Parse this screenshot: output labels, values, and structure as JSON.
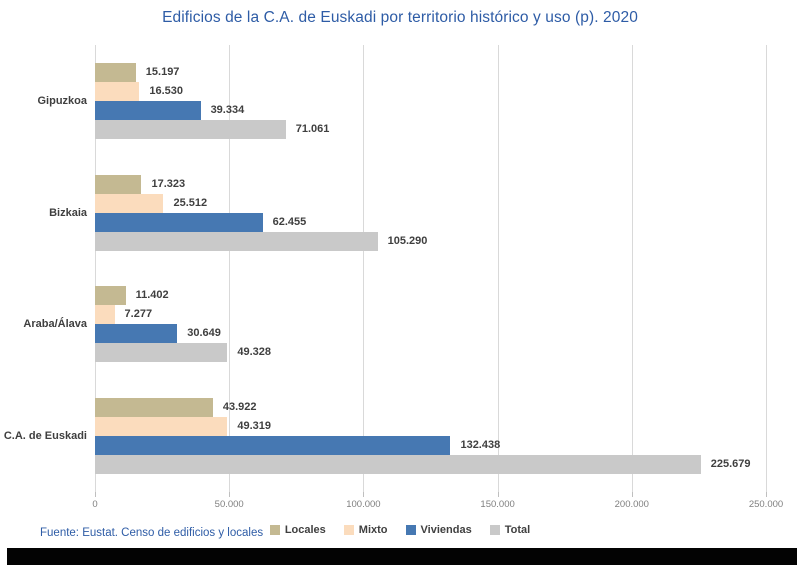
{
  "title": "Edificios de la C.A. de Euskadi por territorio histórico y uso (p). 2020",
  "footer": {
    "source": "Fuente: Eustat. Censo de edificios y locales"
  },
  "colors": {
    "title_text": "#2e5ca6",
    "source_text": "#2e5ca6",
    "locales": "#c4b992",
    "mixto": "#fbdcbd",
    "viviendas": "#4678b2",
    "total": "#c9c9c9",
    "gridline": "#d9d9d9",
    "value_label": "#3f3f3f",
    "tick_label": "#7f7f7f",
    "bottom_bar": "#030303"
  },
  "chart_data": {
    "type": "bar",
    "orientation": "horizontal",
    "title": "Edificios de la C.A. de Euskadi por territorio histórico y uso (p). 2020",
    "categories": [
      "Gipuzkoa",
      "Bizkaia",
      "Araba/Álava",
      "C.A. de Euskadi"
    ],
    "series": [
      {
        "name": "Locales",
        "color_key": "locales",
        "values": [
          15197,
          17323,
          11402,
          43922
        ]
      },
      {
        "name": "Mixto",
        "color_key": "mixto",
        "values": [
          16530,
          25512,
          7277,
          49319
        ]
      },
      {
        "name": "Viviendas",
        "color_key": "viviendas",
        "values": [
          39334,
          62455,
          30649,
          132438
        ]
      },
      {
        "name": "Total",
        "color_key": "total",
        "values": [
          71061,
          105290,
          49328,
          225679
        ]
      }
    ],
    "value_labels": [
      "15.197",
      "16.530",
      "39.334",
      "71.061",
      "17.323",
      "25.512",
      "62.455",
      "105.290",
      "11.402",
      "7.277",
      "30.649",
      "49.328",
      "43.922",
      "49.319",
      "132.438",
      "225.679"
    ],
    "xlim": [
      0,
      250000
    ],
    "x_ticks": [
      "0",
      "50.000",
      "100.000",
      "150.000",
      "200.000",
      "250.000"
    ],
    "grid": true,
    "legend_position": "bottom",
    "source": "Fuente: Eustat. Censo de edificios y locales"
  }
}
